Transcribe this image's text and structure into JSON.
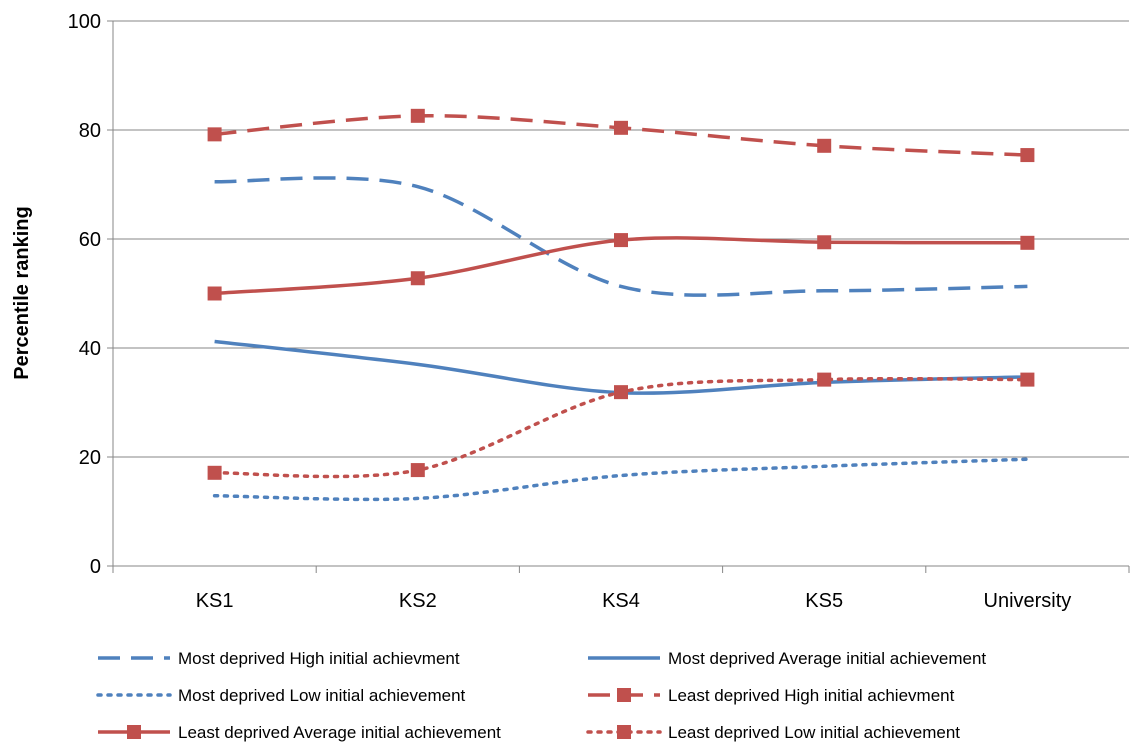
{
  "chart_data": {
    "type": "line",
    "title": "",
    "xlabel": "",
    "ylabel": "Percentile ranking",
    "categories": [
      "KS1",
      "KS2",
      "KS4",
      "KS5",
      "University"
    ],
    "ylim": [
      0,
      100
    ],
    "yticks": [
      0,
      20,
      40,
      60,
      80,
      100
    ],
    "grid": true,
    "legend_position": "bottom",
    "series": [
      {
        "name": "Most deprived High initial achievment",
        "values": [
          70.5,
          69.6,
          51.3,
          50.5,
          51.3
        ],
        "color": "#4F81BD",
        "dash": "dashed",
        "marker": "none"
      },
      {
        "name": "Most deprived Average initial achievement",
        "values": [
          41.2,
          37.0,
          31.8,
          33.7,
          34.7
        ],
        "color": "#4F81BD",
        "dash": "solid",
        "marker": "none"
      },
      {
        "name": "Most deprived Low initial achievement",
        "values": [
          12.9,
          12.4,
          16.6,
          18.3,
          19.6
        ],
        "color": "#4F81BD",
        "dash": "dotted",
        "marker": "none"
      },
      {
        "name": "Least deprived High initial achievment",
        "values": [
          79.2,
          82.6,
          80.4,
          77.1,
          75.4
        ],
        "color": "#C0504D",
        "dash": "dashed",
        "marker": "square"
      },
      {
        "name": "Least deprived Average initial achievement",
        "values": [
          50.0,
          52.8,
          59.8,
          59.4,
          59.3
        ],
        "color": "#C0504D",
        "dash": "solid",
        "marker": "square"
      },
      {
        "name": "Least deprived Low initial achievement",
        "values": [
          17.1,
          17.6,
          31.9,
          34.2,
          34.2
        ],
        "color": "#C0504D",
        "dash": "dotted",
        "marker": "square"
      }
    ]
  }
}
